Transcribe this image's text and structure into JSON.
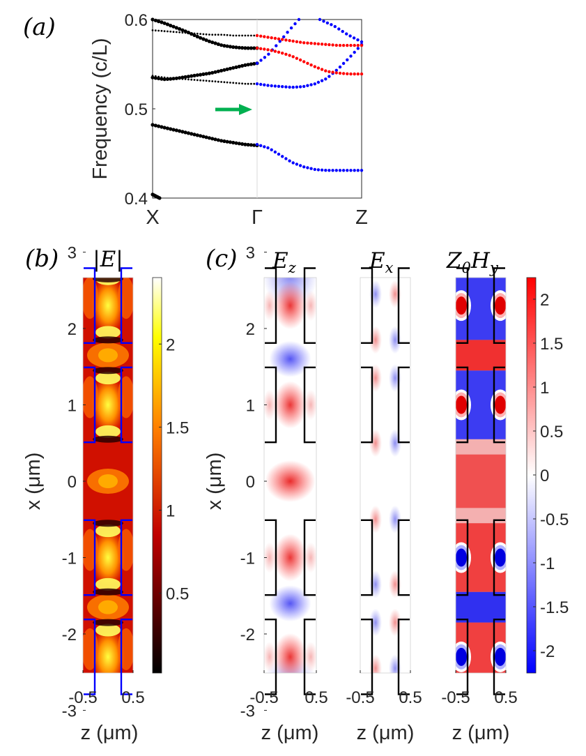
{
  "panels": {
    "a": "(a)",
    "b": "(b)",
    "c": "(c)"
  },
  "chart_data": [
    {
      "type": "line",
      "panel": "a",
      "ylabel": "Frequency (c/L)",
      "xlabel": "",
      "x_ticks": [
        "X",
        "Γ",
        "Z"
      ],
      "y_ticks": [
        "0.4",
        "0.5",
        "0.6"
      ],
      "ylim": [
        0.4,
        0.6
      ],
      "colors": {
        "XG": "#000000",
        "GZ_blue": "#0000ff",
        "GZ_red": "#ff0000",
        "arrow": "#00b050"
      },
      "arrow_frequency": 0.5,
      "x_segment": {
        "domain": [
          "X",
          "Γ"
        ],
        "bands": [
          {
            "name": "band1",
            "values": [
              0.482,
              0.479,
              0.476,
              0.473,
              0.47,
              0.467,
              0.464,
              0.462,
              0.46,
              0.459
            ]
          },
          {
            "name": "band2",
            "values": [
              0.535,
              0.533,
              0.534,
              0.536,
              0.538,
              0.54,
              0.543,
              0.546,
              0.549,
              0.551
            ]
          },
          {
            "name": "band3",
            "values": [
              0.537,
              0.535,
              0.534,
              0.533,
              0.532,
              0.531,
              0.53,
              0.529,
              0.528,
              0.528
            ]
          },
          {
            "name": "band4",
            "values": [
              0.6,
              0.596,
              0.591,
              0.586,
              0.58,
              0.575,
              0.571,
              0.569,
              0.568,
              0.568
            ]
          },
          {
            "name": "band5",
            "values": [
              0.588,
              0.587,
              0.586,
              0.585,
              0.584,
              0.583,
              0.583,
              0.582,
              0.582,
              0.582
            ]
          },
          {
            "name": "band6",
            "values": [
              0.404,
              0.402,
              0.4
            ]
          }
        ]
      },
      "z_segment": {
        "domain": [
          "Γ",
          "Z"
        ],
        "bands": [
          {
            "color": "blue",
            "values": [
              0.46,
              0.456,
              0.448,
              0.44,
              0.435,
              0.432,
              0.431,
              0.431,
              0.431,
              0.431
            ]
          },
          {
            "color": "blue",
            "values": [
              0.528,
              0.526,
              0.525,
              0.524,
              0.525,
              0.528,
              0.534,
              0.545,
              0.558,
              0.572
            ]
          },
          {
            "color": "blue",
            "values": [
              0.551,
              0.56,
              0.573,
              0.587,
              0.6
            ]
          },
          {
            "color": "blue",
            "values": [
              0.6,
              0.593,
              0.583,
              0.575
            ]
          },
          {
            "color": "red",
            "values": [
              0.582,
              0.58,
              0.578,
              0.576,
              0.574,
              0.573,
              0.572,
              0.571,
              0.571,
              0.571
            ]
          },
          {
            "color": "red",
            "values": [
              0.568,
              0.566,
              0.563,
              0.559,
              0.553,
              0.547,
              0.542,
              0.54,
              0.539,
              0.539
            ]
          }
        ]
      }
    },
    {
      "type": "heatmap",
      "panel": "b",
      "title": "|E|",
      "xlabel": "z (μm)",
      "ylabel": "x (μm)",
      "x_ticks": [
        "-0.5",
        "0.5"
      ],
      "y_ticks": [
        "3",
        "2",
        "1",
        "0",
        "-1",
        "-2",
        "-3"
      ],
      "colorbar_ticks": [
        "2",
        "1.5",
        "1",
        "0.5"
      ],
      "colormap": "hot",
      "outline_color": "#0000ff"
    },
    {
      "type": "heatmap",
      "panel": "c",
      "titles": [
        "Ez",
        "Ex",
        "Z0Hy"
      ],
      "xlabel": "z (μm)",
      "ylabel": "x (μm)",
      "x_ticks": [
        "-0.5",
        "0.5"
      ],
      "y_ticks": [
        "3",
        "2",
        "1",
        "0",
        "-1",
        "-2",
        "-3"
      ],
      "colorbar_ticks": [
        "2",
        "1.5",
        "1",
        "0.5",
        "0",
        "-0.5",
        "-1",
        "-1.5",
        "-2"
      ],
      "colormap": "blue-white-red",
      "outline_color": "#000000"
    }
  ]
}
